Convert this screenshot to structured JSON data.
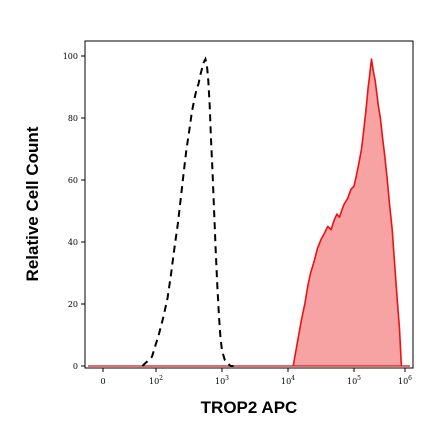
{
  "chart_data": {
    "type": "area",
    "title": "",
    "xlabel": "TROP2 APC",
    "ylabel": "Relative Cell Count",
    "x_scale": "biexponential",
    "xlim": [
      -10,
      1000000
    ],
    "ylim": [
      0,
      100
    ],
    "x_tick_labels": [
      {
        "value": 0,
        "base": "0",
        "exp": ""
      },
      {
        "value": 100,
        "base": "10",
        "exp": "2"
      },
      {
        "value": 1000,
        "base": "10",
        "exp": "3"
      },
      {
        "value": 10000,
        "base": "10",
        "exp": "4"
      },
      {
        "value": 100000,
        "base": "10",
        "exp": "5"
      },
      {
        "value": 1000000,
        "base": "10",
        "exp": "6"
      }
    ],
    "y_ticks": [
      0,
      20,
      40,
      60,
      80,
      100
    ],
    "grid": false,
    "legend": "none",
    "series": [
      {
        "style": "dashed-line",
        "color": "#000000",
        "x": [
          30,
          40,
          55,
          70,
          90,
          110,
          130,
          150,
          170,
          190,
          215,
          240,
          265,
          290,
          320,
          350,
          380,
          410,
          440,
          470,
          500,
          530,
          560,
          590,
          620,
          650,
          680,
          720,
          760,
          800,
          850,
          900,
          950,
          1000,
          1100,
          1200,
          1350,
          1500
        ],
        "y": [
          0,
          1,
          2,
          3,
          6,
          10,
          16,
          22,
          30,
          38,
          46,
          55,
          63,
          70,
          76,
          82,
          86,
          89,
          91,
          94,
          96,
          98,
          99,
          97,
          92,
          84,
          74,
          62,
          50,
          38,
          26,
          16,
          9,
          5,
          2,
          1,
          0,
          0
        ]
      },
      {
        "style": "filled",
        "color": "#ee1111",
        "fill": "#f7a3a3",
        "x": [
          12000,
          14000,
          16000,
          18000,
          20000,
          22000,
          25000,
          28000,
          32000,
          36000,
          40000,
          45000,
          50000,
          55000,
          60000,
          70000,
          80000,
          90000,
          100000,
          110000,
          120000,
          130000,
          140000,
          150000,
          160000,
          170000,
          180000,
          190000,
          200000,
          210000,
          220000,
          240000,
          260000,
          280000,
          300000,
          330000,
          360000,
          400000,
          450000,
          500000,
          560000,
          620000,
          700000,
          780000,
          850000
        ],
        "y": [
          0,
          8,
          15,
          20,
          26,
          30,
          34,
          38,
          41,
          43,
          45,
          44,
          47,
          49,
          48,
          52,
          54,
          57,
          58,
          61,
          64,
          67,
          70,
          74,
          78,
          82,
          86,
          90,
          93,
          96,
          99,
          95,
          92,
          88,
          84,
          80,
          74,
          68,
          60,
          52,
          44,
          34,
          22,
          12,
          0
        ]
      }
    ]
  }
}
